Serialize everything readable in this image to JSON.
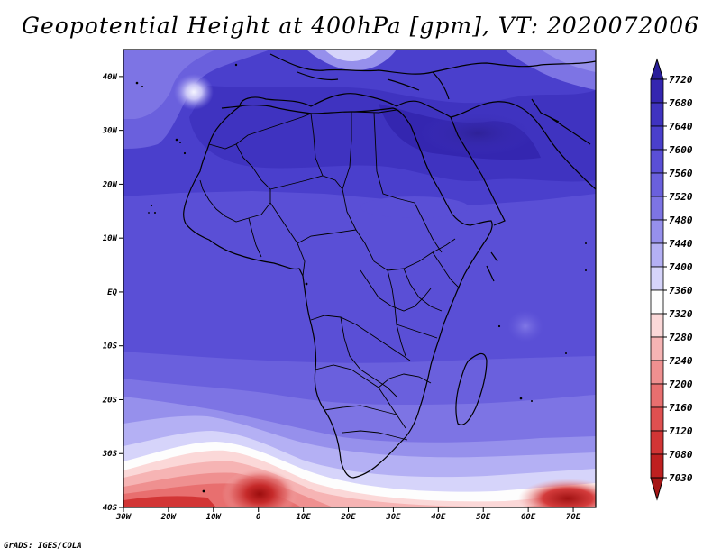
{
  "title": "Geopotential Height at 400hPa [gpm], VT: 2020072006",
  "footer": "GrADS: IGES/COLA",
  "map": {
    "region": "Africa",
    "lon_range": [
      -30,
      75
    ],
    "lat_range": [
      -40,
      45
    ],
    "lat_labels": [
      "40N",
      "30N",
      "20N",
      "10N",
      "EQ",
      "10S",
      "20S",
      "30S",
      "40S"
    ],
    "lon_labels": [
      "30W",
      "20W",
      "10W",
      "0",
      "10E",
      "20E",
      "30E",
      "40E",
      "50E",
      "60E",
      "70E"
    ]
  },
  "colorbar": {
    "labels": [
      "7720",
      "7680",
      "7640",
      "7600",
      "7560",
      "7520",
      "7480",
      "7440",
      "7400",
      "7360",
      "7320",
      "7280",
      "7240",
      "7200",
      "7160",
      "7120",
      "7080",
      "7030"
    ],
    "colors": [
      "#2a1f9a",
      "#3426b0",
      "#3f33c0",
      "#4a3fcc",
      "#5a4fd6",
      "#6a60dd",
      "#7d74e4",
      "#9690ec",
      "#b4b0f4",
      "#d6d4fa",
      "#fdfdfd",
      "#fbd8d8",
      "#f6b4b4",
      "#ef9090",
      "#e86f6f",
      "#df5050",
      "#d23535",
      "#bf2020",
      "#a51616"
    ]
  }
}
